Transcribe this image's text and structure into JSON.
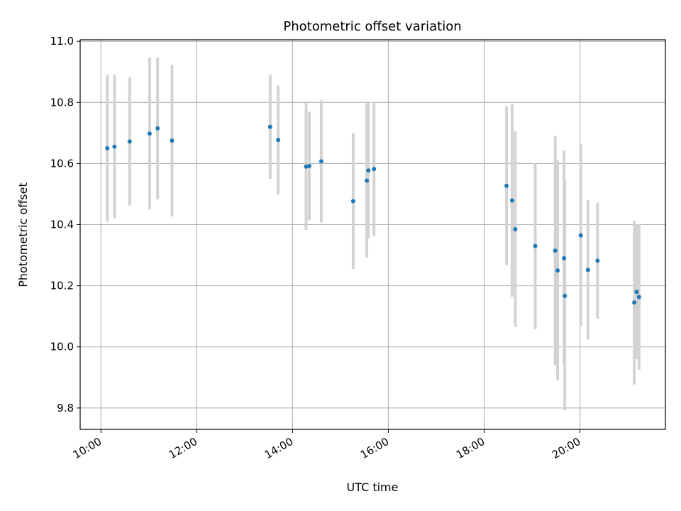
{
  "chart_data": {
    "type": "scatter",
    "title": "Photometric offset variation",
    "xlabel": "UTC time",
    "ylabel": "Photometric offset",
    "x_tick_labels": [
      "10:00",
      "12:00",
      "14:00",
      "16:00",
      "18:00",
      "20:00"
    ],
    "x_ticks_hours": [
      10,
      12,
      14,
      16,
      18,
      20
    ],
    "y_tick_labels": [
      "9.8",
      "10.0",
      "10.2",
      "10.4",
      "10.6",
      "10.8",
      "11.0"
    ],
    "y_ticks": [
      9.8,
      10.0,
      10.2,
      10.4,
      10.6,
      10.8,
      11.0
    ],
    "xlim": [
      "09:34",
      "21:47"
    ],
    "ylim": [
      9.73,
      11.005
    ],
    "grid": true,
    "point_color": "#1f77b4",
    "errorbar_color": "#d3d3d3",
    "points": [
      {
        "x": "10:08",
        "y": 10.65,
        "err": 0.24
      },
      {
        "x": "10:17",
        "y": 10.655,
        "err": 0.235
      },
      {
        "x": "10:36",
        "y": 10.672,
        "err": 0.21
      },
      {
        "x": "11:01",
        "y": 10.698,
        "err": 0.248
      },
      {
        "x": "11:11",
        "y": 10.715,
        "err": 0.232
      },
      {
        "x": "11:29",
        "y": 10.675,
        "err": 0.248
      },
      {
        "x": "13:32",
        "y": 10.72,
        "err": 0.17
      },
      {
        "x": "13:42",
        "y": 10.677,
        "err": 0.178
      },
      {
        "x": "14:17",
        "y": 10.59,
        "err": 0.207
      },
      {
        "x": "14:21",
        "y": 10.592,
        "err": 0.178
      },
      {
        "x": "14:36",
        "y": 10.607,
        "err": 0.2
      },
      {
        "x": "15:16",
        "y": 10.477,
        "err": 0.222
      },
      {
        "x": "15:33",
        "y": 10.544,
        "err": 0.252
      },
      {
        "x": "15:35",
        "y": 10.577,
        "err": 0.222
      },
      {
        "x": "15:42",
        "y": 10.582,
        "err": 0.22
      },
      {
        "x": "18:28",
        "y": 10.527,
        "err": 0.26
      },
      {
        "x": "18:35",
        "y": 10.479,
        "err": 0.315
      },
      {
        "x": "18:39",
        "y": 10.385,
        "err": 0.32
      },
      {
        "x": "19:04",
        "y": 10.33,
        "err": 0.272
      },
      {
        "x": "19:29",
        "y": 10.315,
        "err": 0.375
      },
      {
        "x": "19:32",
        "y": 10.25,
        "err": 0.36
      },
      {
        "x": "19:40",
        "y": 10.29,
        "err": 0.352
      },
      {
        "x": "19:41",
        "y": 10.167,
        "err": 0.375
      },
      {
        "x": "20:01",
        "y": 10.365,
        "err": 0.298
      },
      {
        "x": "20:10",
        "y": 10.252,
        "err": 0.228
      },
      {
        "x": "20:22",
        "y": 10.282,
        "err": 0.19
      },
      {
        "x": "21:08",
        "y": 10.145,
        "err": 0.268
      },
      {
        "x": "21:11",
        "y": 10.18,
        "err": 0.22
      },
      {
        "x": "21:14",
        "y": 10.163,
        "err": 0.238
      }
    ]
  }
}
